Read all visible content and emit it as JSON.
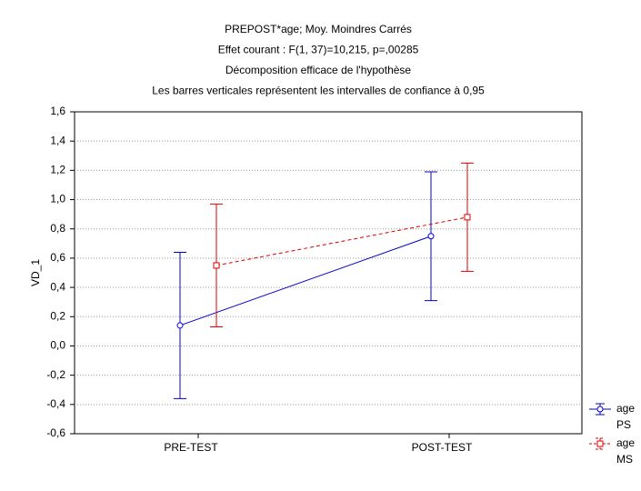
{
  "chart_data": {
    "type": "line",
    "title": [
      "PREPOST*age; Moy. Moindres Carrés",
      "Effet courant : F(1, 37)=10,215, p=,00285",
      "Décomposition efficace de l'hypothèse",
      "Les barres verticales représentent les intervalles de confiance à 0,95"
    ],
    "y_label": "VD_1",
    "categories": [
      "PRE-TEST",
      "POST-TEST"
    ],
    "legend_title": "age",
    "series": [
      {
        "name": "PS",
        "color": "#0000cc",
        "dashed": false,
        "marker": "circle",
        "values": [
          0.14,
          0.75
        ],
        "errors": [
          0.5,
          0.44
        ]
      },
      {
        "name": "MS",
        "color": "#dd0000",
        "dashed": true,
        "marker": "square",
        "values": [
          0.55,
          0.88
        ],
        "errors": [
          0.42,
          0.37
        ]
      }
    ],
    "ylim": [
      -0.6,
      1.6
    ],
    "yticks": [
      {
        "value": -0.6,
        "label": "-0,6"
      },
      {
        "value": -0.4,
        "label": "-0,4"
      },
      {
        "value": -0.2,
        "label": "-0,2"
      },
      {
        "value": 0,
        "label": "0,0"
      },
      {
        "value": 0.2,
        "label": "0,2"
      },
      {
        "value": 0.4,
        "label": "0,4"
      },
      {
        "value": 0.6,
        "label": "0,6"
      },
      {
        "value": 0.8,
        "label": "0,8"
      },
      {
        "value": 1.0,
        "label": "1,0"
      },
      {
        "value": 1.2,
        "label": "1,2"
      },
      {
        "value": 1.4,
        "label": "1,4"
      },
      {
        "value": 1.6,
        "label": "1,6"
      }
    ],
    "grid": true,
    "legend": "bottom-right"
  }
}
